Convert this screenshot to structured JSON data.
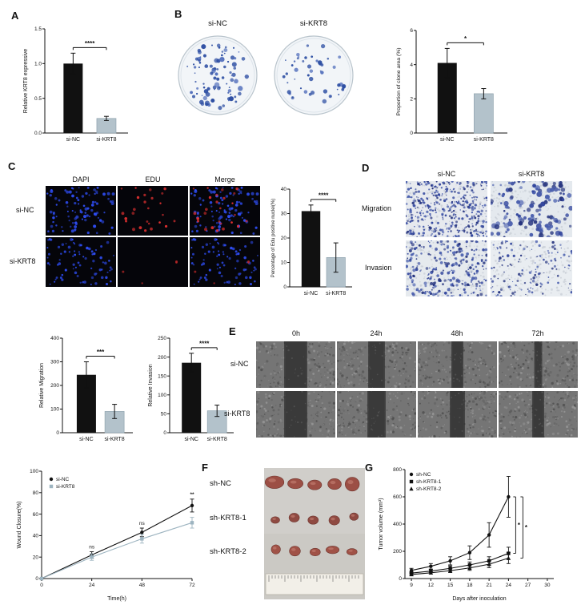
{
  "panel_labels": {
    "A": "A",
    "B": "B",
    "C": "C",
    "D": "D",
    "E": "E",
    "F": "F",
    "G": "G"
  },
  "panelB": {
    "dish_labels": [
      "si-NC",
      "si-KRT8"
    ]
  },
  "panelC": {
    "column_headers": [
      "DAPI",
      "EDU",
      "Merge"
    ],
    "row_labels": [
      "si-NC",
      "si-KRT8"
    ]
  },
  "panelD": {
    "column_headers": [
      "si-NC",
      "si-KRT8"
    ],
    "row_labels": [
      "Migration",
      "Invasion"
    ]
  },
  "panelE": {
    "column_headers": [
      "0h",
      "24h",
      "48h",
      "72h"
    ],
    "row_labels": [
      "si-NC",
      "si-KRT8"
    ]
  },
  "panelF": {
    "row_labels": [
      "sh-NC",
      "sh-KRT8-1",
      "sh-KRT8-2"
    ]
  },
  "chart_data": [
    {
      "id": "krt8-expression",
      "panel": "A",
      "type": "bar",
      "categories": [
        "si-NC",
        "si-KRT8"
      ],
      "values": [
        1.0,
        0.21
      ],
      "errors": [
        0.15,
        0.03
      ],
      "title": "",
      "xlabel": "",
      "ylabel": "Relative KRT8 expressive",
      "ylim": [
        0,
        1.5
      ],
      "yticks": [
        0,
        0.5,
        1,
        1.5
      ],
      "significance": "****",
      "bar_colors": [
        "#111111",
        "#b3c2cb"
      ]
    },
    {
      "id": "clone-area",
      "panel": "B",
      "type": "bar",
      "categories": [
        "si-NC",
        "si-KRT8"
      ],
      "values": [
        4.1,
        2.3
      ],
      "errors": [
        0.85,
        0.3
      ],
      "title": "",
      "xlabel": "",
      "ylabel": "Proportion of clone area (%)",
      "ylim": [
        0,
        6
      ],
      "yticks": [
        0,
        2,
        4,
        6
      ],
      "significance": "*",
      "bar_colors": [
        "#111111",
        "#b3c2cb"
      ]
    },
    {
      "id": "edu-positive",
      "panel": "C",
      "type": "bar",
      "categories": [
        "si-NC",
        "si-KRT8"
      ],
      "values": [
        31,
        12
      ],
      "errors": [
        2.5,
        6
      ],
      "title": "",
      "xlabel": "",
      "ylabel": "Percentage of Edu positive nuclei(%)",
      "ylim": [
        0,
        40
      ],
      "yticks": [
        0,
        10,
        20,
        30,
        40
      ],
      "significance": "****",
      "bar_colors": [
        "#111111",
        "#b3c2cb"
      ]
    },
    {
      "id": "relative-migration",
      "type": "bar",
      "categories": [
        "si-NC",
        "si-KRT8"
      ],
      "values": [
        245,
        90
      ],
      "errors": [
        55,
        30
      ],
      "title": "",
      "xlabel": "",
      "ylabel": "Relative Migration",
      "ylim": [
        0,
        400
      ],
      "yticks": [
        0,
        100,
        200,
        300,
        400
      ],
      "significance": "***",
      "bar_colors": [
        "#111111",
        "#b3c2cb"
      ]
    },
    {
      "id": "relative-invasion",
      "type": "bar",
      "categories": [
        "si-NC",
        "si-KRT8"
      ],
      "values": [
        185,
        58
      ],
      "errors": [
        25,
        15
      ],
      "title": "",
      "xlabel": "",
      "ylabel": "Relative Invasion",
      "ylim": [
        0,
        250
      ],
      "yticks": [
        0,
        50,
        100,
        150,
        200,
        250
      ],
      "significance": "****",
      "bar_colors": [
        "#111111",
        "#b3c2cb"
      ]
    },
    {
      "id": "wound-closure",
      "type": "line",
      "x": [
        0,
        24,
        48,
        72
      ],
      "xticks": [
        0,
        24,
        48,
        72
      ],
      "xlim": [
        0,
        72
      ],
      "xlabel": "Time(h)",
      "ylabel": "Wound Closure(%)",
      "ylim": [
        0,
        100
      ],
      "yticks": [
        0,
        20,
        40,
        60,
        80,
        100
      ],
      "legend_position": "top-left",
      "series": [
        {
          "name": "si-NC",
          "values": [
            0,
            22,
            43,
            68
          ],
          "errors": [
            0,
            3,
            4,
            6
          ],
          "marker": "circle",
          "color": "#111111"
        },
        {
          "name": "si-KRT8",
          "values": [
            0,
            20,
            37,
            52
          ],
          "errors": [
            0,
            3,
            4,
            5
          ],
          "marker": "square",
          "color": "#9db4c0"
        }
      ],
      "annotations": [
        {
          "x": 24,
          "label": "ns"
        },
        {
          "x": 48,
          "label": "ns"
        },
        {
          "x": 72,
          "label": "**"
        }
      ]
    },
    {
      "id": "tumor-volume",
      "panel": "G",
      "type": "line",
      "x": [
        9,
        12,
        15,
        18,
        21,
        24
      ],
      "xticks": [
        9,
        12,
        15,
        18,
        21,
        24,
        27,
        30
      ],
      "xlim": [
        8,
        31
      ],
      "xlabel": "Days after inoculation",
      "ylabel": "Tumor volume (mm³)",
      "ylim": [
        0,
        800
      ],
      "yticks": [
        0,
        200,
        400,
        600,
        800
      ],
      "legend_position": "top-left",
      "series": [
        {
          "name": "sh-NC",
          "values": [
            60,
            90,
            130,
            190,
            320,
            600
          ],
          "errors": [
            15,
            20,
            30,
            50,
            90,
            150
          ],
          "marker": "circle",
          "color": "#111111"
        },
        {
          "name": "sh-KRT8-1",
          "values": [
            40,
            55,
            75,
            100,
            130,
            185
          ],
          "errors": [
            10,
            12,
            18,
            22,
            30,
            45
          ],
          "marker": "square",
          "color": "#111111"
        },
        {
          "name": "sh-KRT8-2",
          "values": [
            30,
            42,
            58,
            78,
            105,
            150
          ],
          "errors": [
            8,
            10,
            14,
            18,
            25,
            40
          ],
          "marker": "triangle",
          "color": "#111111"
        }
      ],
      "significance": [
        "*",
        "*"
      ]
    }
  ]
}
